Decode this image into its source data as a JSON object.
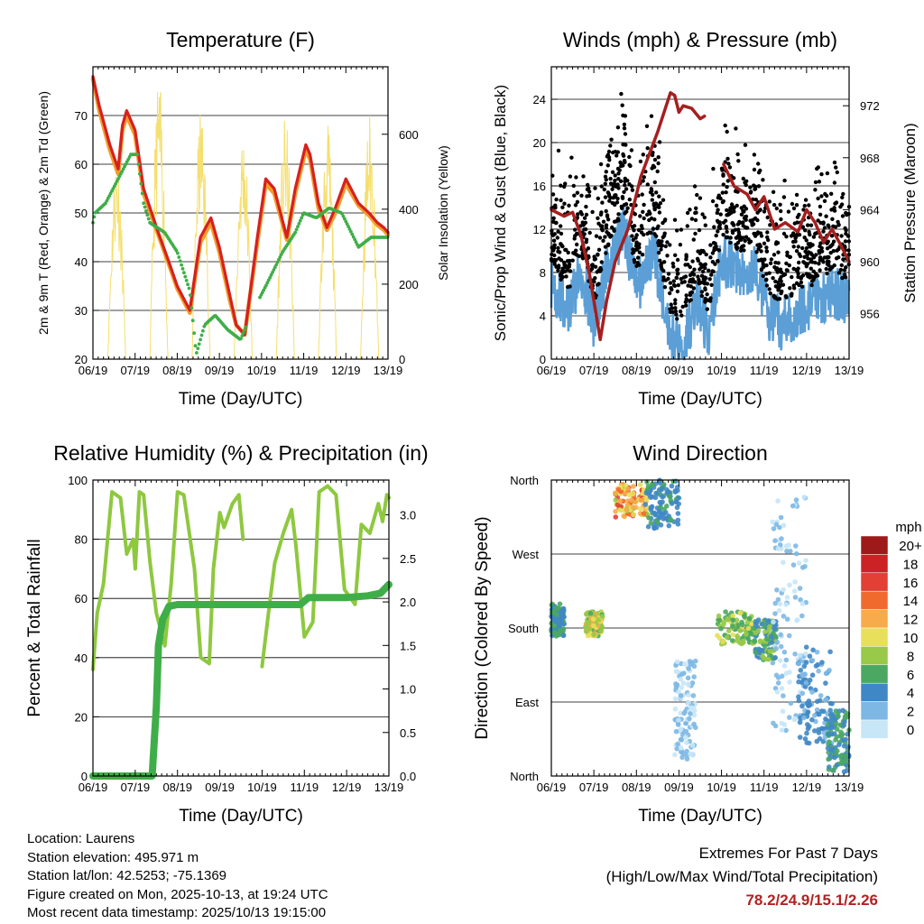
{
  "colors": {
    "temp2m": "#d62020",
    "temp9m": "#f39c2b",
    "dewpoint": "#3fae49",
    "solar": "#f5df6e",
    "wind": "#5b9fd6",
    "gust": "#000000",
    "pressure": "#a51f1f",
    "rh": "#8ec83f",
    "precip": "#3fae49",
    "extremes": "#b22222"
  },
  "chart_data": [
    {
      "id": "temperature",
      "type": "line",
      "title": "Temperature (F)",
      "xlabel": "Time (Day/UTC)",
      "ylabel": "2m & 9m T (Red, Orange) & 2m Td (Green)",
      "y2label": "Solar Insolation (Yellow)",
      "xticks": [
        "06/19",
        "07/19",
        "08/19",
        "09/19",
        "10/19",
        "11/19",
        "12/19",
        "13/19"
      ],
      "yticks": [
        20,
        30,
        40,
        50,
        60,
        70
      ],
      "y2ticks": [
        0,
        200,
        400,
        600
      ],
      "xlim": [
        0,
        7
      ],
      "ylim": [
        20,
        80
      ],
      "y2lim": [
        0,
        780
      ],
      "series": [
        {
          "name": "2m T",
          "color": "temp2m",
          "x": [
            0,
            0.15,
            0.4,
            0.6,
            0.7,
            0.8,
            1.0,
            1.2,
            1.55,
            1.8,
            2.0,
            2.3,
            2.55,
            2.8,
            3.0,
            3.25,
            3.4,
            3.6,
            3.9,
            4.1,
            4.3,
            4.6,
            4.8,
            5.05,
            5.15,
            5.35,
            5.55,
            5.75,
            6.0,
            6.3,
            6.55,
            6.75,
            6.9,
            7.0
          ],
          "y": [
            78,
            72,
            64,
            59,
            68,
            71,
            67,
            55,
            46,
            40,
            35,
            30,
            45,
            49,
            43,
            33,
            27,
            25,
            45,
            57,
            55,
            45,
            55,
            64,
            62,
            52,
            47,
            51,
            57,
            52,
            50,
            48,
            47,
            46
          ]
        },
        {
          "name": "9m T",
          "color": "temp9m",
          "x": [
            0,
            0.15,
            0.4,
            0.6,
            0.7,
            0.8,
            1.0,
            1.2,
            1.55,
            1.8,
            2.0,
            2.3,
            2.55,
            2.8,
            3.0,
            3.25,
            3.4,
            3.6,
            3.9,
            4.1,
            4.3,
            4.6,
            4.8,
            5.05,
            5.15,
            5.35,
            5.55,
            5.75,
            6.0,
            6.3,
            6.55,
            6.75,
            6.9,
            7.0
          ],
          "y": [
            77.5,
            71,
            63,
            58,
            67,
            70,
            66,
            54,
            45.5,
            39.5,
            34.5,
            29.5,
            44,
            48,
            42,
            32,
            27,
            25,
            44,
            56,
            54,
            44.5,
            54,
            63,
            61,
            51,
            46.5,
            50,
            56,
            51.5,
            49.5,
            47.5,
            46.5,
            45.5
          ]
        },
        {
          "name": "2m Td",
          "color": "dewpoint",
          "x": [
            0,
            0.05,
            0.3,
            0.6,
            0.9,
            1.05,
            1.2,
            1.35,
            1.7,
            2.0,
            2.3,
            2.45,
            2.65,
            2.9,
            3.2,
            3.5,
            3.8,
            4.1,
            4.5,
            4.8,
            5.0,
            5.3,
            5.6,
            5.9,
            6.3,
            6.6,
            6.9,
            7.0
          ],
          "y": [
            48,
            50,
            52,
            57,
            62,
            62,
            52,
            48,
            46,
            42,
            34,
            21,
            27,
            29,
            26,
            24,
            30,
            35,
            42,
            46,
            50,
            49,
            51,
            50,
            43,
            45,
            45,
            45
          ]
        }
      ]
    },
    {
      "id": "winds",
      "type": "scatter",
      "title": "Winds (mph) & Pressure (mb)",
      "xlabel": "Time (Day/UTC)",
      "ylabel": "Sonic/Prop Wind & Gust (Blue, Black)",
      "y2label": "Station Pressure (Maroon)",
      "xticks": [
        "06/19",
        "07/19",
        "08/19",
        "09/19",
        "10/19",
        "11/19",
        "12/19",
        "13/19"
      ],
      "yticks": [
        0,
        4,
        8,
        12,
        16,
        20,
        24
      ],
      "y2ticks": [
        956,
        960,
        964,
        968,
        972
      ],
      "xlim": [
        0,
        7
      ],
      "ylim": [
        0,
        27
      ],
      "y2lim": [
        952.5,
        975
      ],
      "series": [
        {
          "name": "Station Pressure",
          "color": "pressure",
          "x": [
            0,
            0.3,
            0.5,
            0.7,
            0.9,
            1.05,
            1.15,
            1.3,
            1.5,
            1.8,
            2.1,
            2.5,
            2.8,
            2.9,
            3.0,
            3.1,
            3.3,
            3.5,
            3.6
          ],
          "y": [
            964,
            963.5,
            963.8,
            962,
            959,
            956,
            954,
            957,
            960,
            962.5,
            966.5,
            970,
            973,
            972.8,
            971.5,
            972,
            971.8,
            971,
            971.2
          ]
        },
        {
          "name": "Station Pressure",
          "color": "pressure",
          "x": [
            4.05,
            4.3,
            4.6,
            4.8,
            5.0,
            5.25,
            5.5,
            5.8,
            6.0,
            6.2,
            6.4,
            6.6,
            6.8,
            7.0
          ],
          "y": [
            967.5,
            965.8,
            965.2,
            964,
            965,
            962.5,
            963,
            962.3,
            964,
            963,
            961.5,
            962.5,
            961.3,
            960
          ]
        }
      ]
    },
    {
      "id": "humidity",
      "type": "line",
      "title": "Relative Humidity (%) & Precipitation (in)",
      "xlabel": "Time (Day/UTC)",
      "ylabel": "Percent & Total Rainfall",
      "xticks": [
        "06/19",
        "07/19",
        "08/19",
        "09/19",
        "10/19",
        "11/19",
        "12/19",
        "13/19"
      ],
      "yticks": [
        0,
        20,
        40,
        60,
        80,
        100
      ],
      "y2ticks": [
        "0.0",
        "0.5",
        "1.0",
        "1.5",
        "2.0",
        "2.5",
        "3.0"
      ],
      "xlim": [
        0,
        7
      ],
      "ylim": [
        0,
        100
      ],
      "y2lim": [
        0,
        3.4
      ],
      "series": [
        {
          "name": "RH",
          "color": "rh",
          "x": [
            0,
            0.1,
            0.25,
            0.45,
            0.65,
            0.8,
            0.95,
            1.0,
            1.1,
            1.2,
            1.35,
            1.5,
            1.7,
            1.85,
            2.0,
            2.15,
            2.4,
            2.55,
            2.75,
            2.85,
            3.0,
            3.1,
            3.3,
            3.45,
            3.55
          ],
          "y": [
            36,
            55,
            65,
            96,
            94,
            75,
            80,
            70,
            96,
            95,
            72,
            55,
            44,
            65,
            96,
            95,
            70,
            40,
            38,
            70,
            89,
            84,
            92,
            95,
            80
          ]
        },
        {
          "name": "RH",
          "color": "rh",
          "x": [
            4.0,
            4.15,
            4.3,
            4.5,
            4.7,
            4.8,
            5.0,
            5.2,
            5.35,
            5.55,
            5.75,
            5.95,
            6.2,
            6.35,
            6.55,
            6.75,
            6.85,
            6.95,
            7.0
          ],
          "y": [
            37,
            55,
            72,
            82,
            90,
            78,
            47,
            52,
            96,
            98,
            95,
            63,
            58,
            85,
            82,
            92,
            86,
            95,
            94
          ]
        },
        {
          "name": "Total Precipitation",
          "color": "precip",
          "x": [
            0,
            1.4,
            1.5,
            1.55,
            1.65,
            1.8,
            2.0,
            2.2,
            2.4,
            2.8,
            3.2,
            3.6,
            4.0,
            4.4,
            4.7,
            4.9,
            5.1,
            5.5,
            6.0,
            6.5,
            6.8,
            7.0
          ],
          "y": [
            0,
            0,
            0.8,
            1.5,
            1.8,
            1.95,
            1.97,
            1.97,
            1.97,
            1.97,
            1.97,
            1.97,
            1.97,
            1.97,
            1.97,
            1.97,
            2.05,
            2.05,
            2.05,
            2.07,
            2.1,
            2.2
          ]
        }
      ]
    },
    {
      "id": "direction",
      "type": "scatter",
      "title": "Wind Direction",
      "xlabel": "Time (Day/UTC)",
      "ylabel": "Direction (Colored By Speed)",
      "xticks": [
        "06/19",
        "07/19",
        "08/19",
        "09/19",
        "10/19",
        "11/19",
        "12/19",
        "13/19"
      ],
      "yticks": [
        "North",
        "East",
        "South",
        "West",
        "North"
      ],
      "xlim": [
        0,
        7
      ],
      "ylim": [
        0,
        360
      ],
      "legend": {
        "title": "mph",
        "labels": [
          "20+",
          "18",
          "16",
          "14",
          "12",
          "10",
          "8",
          "6",
          "4",
          "2",
          "0"
        ],
        "colors": [
          "#9e1a1a",
          "#cc2226",
          "#e24034",
          "#f06a2e",
          "#f7ab4a",
          "#e8df5a",
          "#98c948",
          "#4aa862",
          "#3f87c5",
          "#7db8e4",
          "#c7e6f7"
        ]
      }
    }
  ],
  "info": {
    "location": "Location: Laurens",
    "elevation": "Station elevation: 495.971 m",
    "latlon": "Station lat/lon: 42.5253; -75.1369",
    "created": "Figure created on Mon, 2025-10-13, at 19:24 UTC",
    "recent": "Most recent data timestamp: 2025/10/13 19:15:00"
  },
  "extremes": {
    "title": "Extremes For Past 7 Days",
    "subtitle": "(High/Low/Max Wind/Total Precipitation)",
    "values": "78.2/24.9/15.1/2.26"
  }
}
